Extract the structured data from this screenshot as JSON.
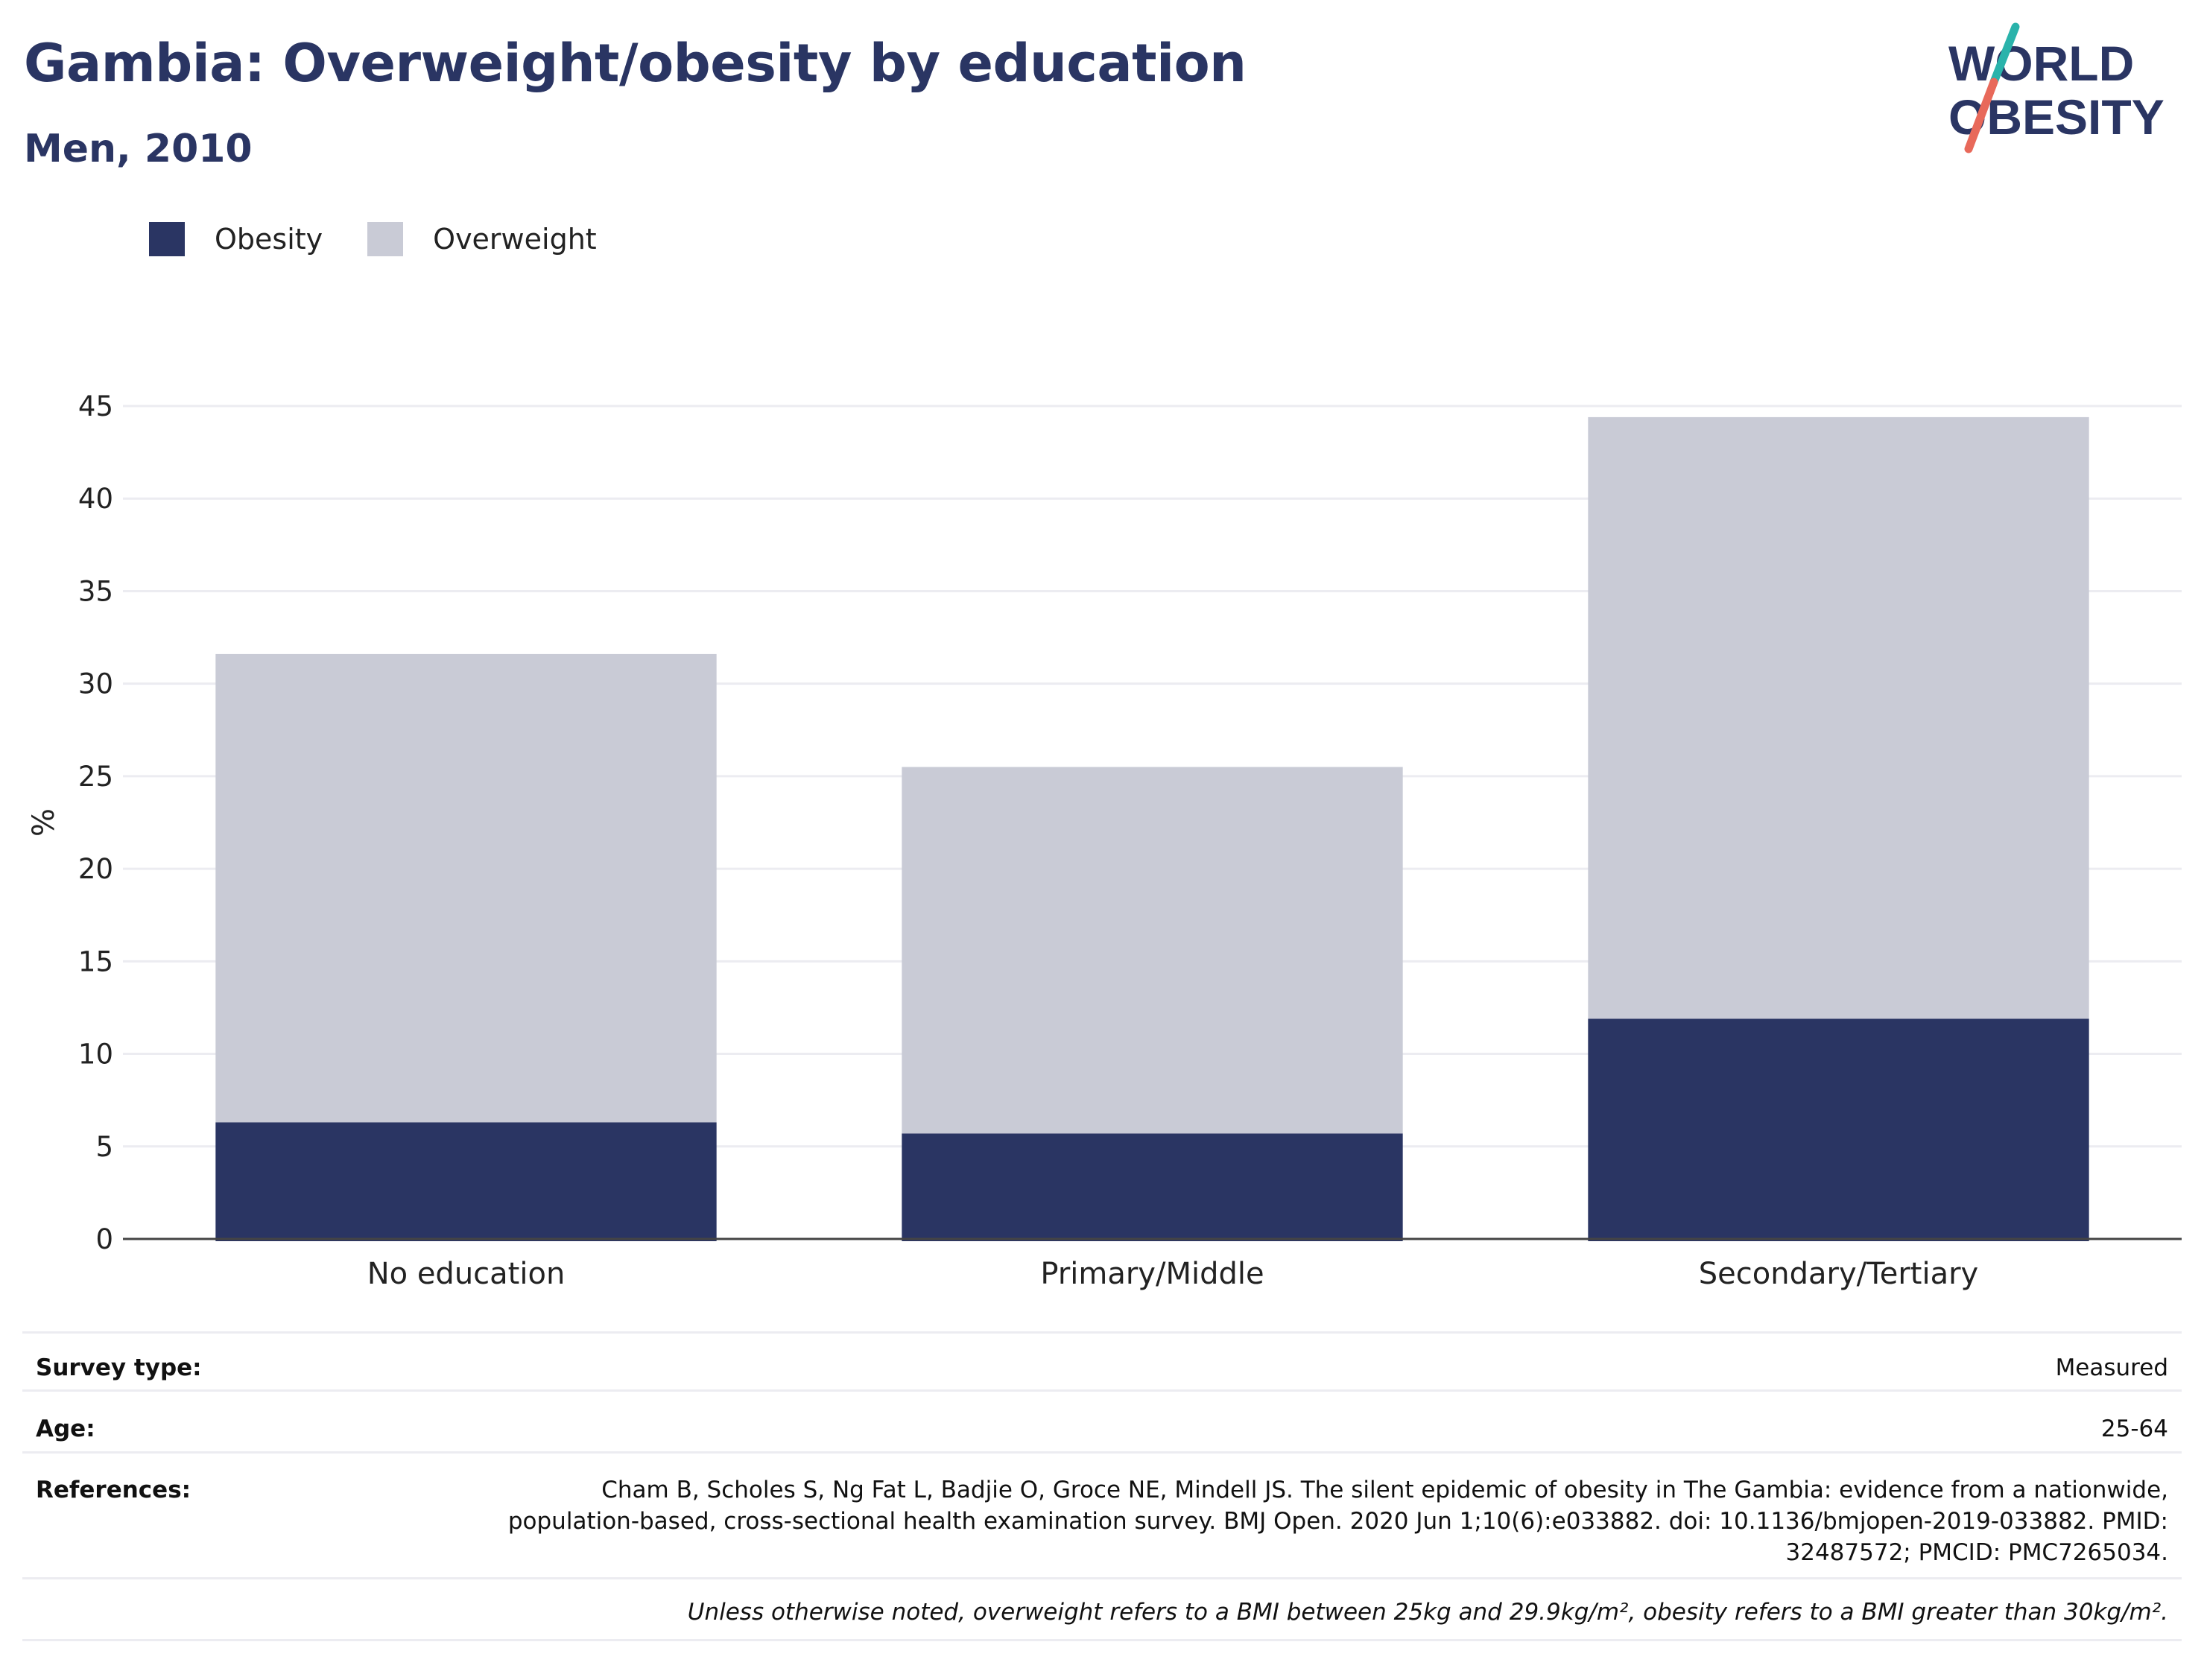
{
  "title": "Gambia: Overweight/obesity by education",
  "subtitle": "Men, 2010",
  "logo": {
    "line1": "WORLD",
    "line2": "OBESITY"
  },
  "colors": {
    "obesity": "#2a3563",
    "overweight": "#c9cbd6",
    "title": "#2a3563",
    "grid": "#ececf1",
    "axis": "#444444",
    "logo_teal": "#2ab3ab",
    "logo_coral": "#e8695a"
  },
  "legend": [
    {
      "name": "Obesity",
      "color": "#2a3563"
    },
    {
      "name": "Overweight",
      "color": "#c9cbd6"
    }
  ],
  "chart_data": {
    "type": "bar",
    "stacked": true,
    "categories": [
      "No education",
      "Primary/Middle",
      "Secondary/Tertiary"
    ],
    "series": [
      {
        "name": "Obesity",
        "values": [
          6.3,
          5.7,
          11.9
        ]
      },
      {
        "name": "Overweight",
        "values": [
          25.3,
          19.8,
          32.5
        ]
      }
    ],
    "ylabel": "%",
    "ylim": [
      0,
      45
    ],
    "yticks": [
      0,
      5,
      10,
      15,
      20,
      25,
      30,
      35,
      40,
      45
    ],
    "grid": true,
    "legend_position": "top-left"
  },
  "footer": {
    "survey_type": {
      "label": "Survey type:",
      "value": "Measured"
    },
    "age": {
      "label": "Age:",
      "value": "25-64"
    },
    "references": {
      "label": "References:",
      "value": "Cham B, Scholes S, Ng Fat L, Badjie O, Groce NE, Mindell JS. The silent epidemic of obesity in The Gambia: evidence from a nationwide, population-based, cross-sectional health examination survey. BMJ Open. 2020 Jun 1;10(6):e033882. doi: 10.1136/bmjopen-2019-033882. PMID: 32487572; PMCID: PMC7265034."
    },
    "note": "Unless otherwise noted, overweight refers to a BMI between 25kg and 29.9kg/m², obesity refers to a BMI greater than 30kg/m²."
  }
}
